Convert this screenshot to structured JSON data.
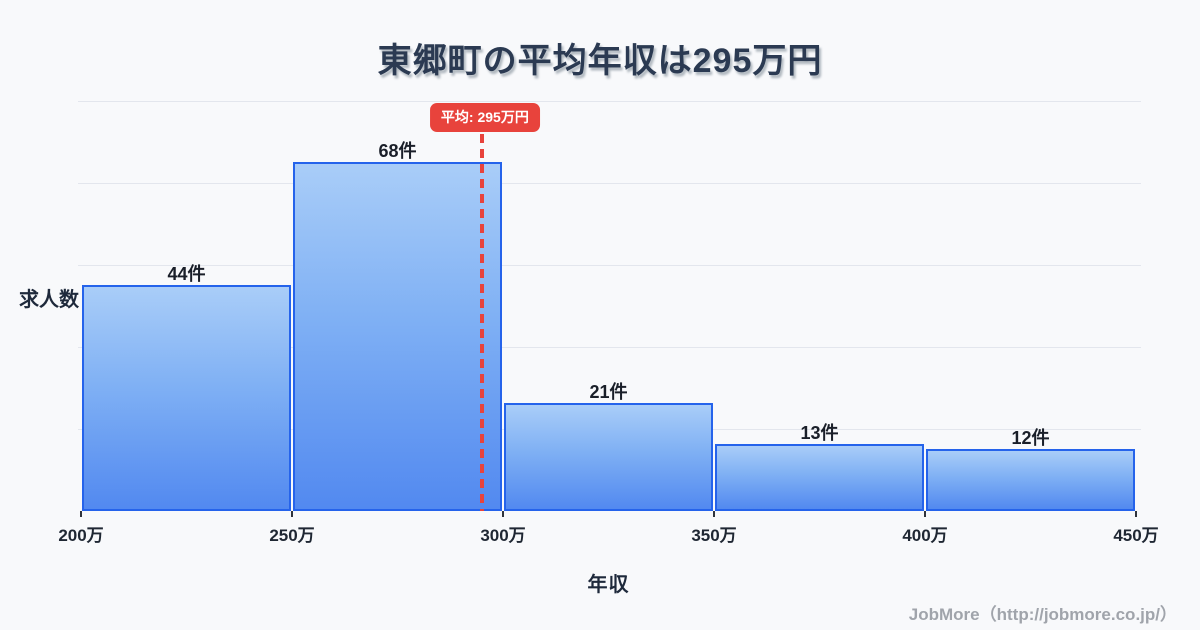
{
  "page": {
    "background_color": "#f8f9fb"
  },
  "title": {
    "text": "東郷町の平均年収は295万円",
    "color": "#2b3a52"
  },
  "chart_data": {
    "type": "bar",
    "subtype": "histogram",
    "title": "東郷町の平均年収は295万円",
    "xlabel": "年収",
    "ylabel": "求人数",
    "categories": [
      "200万-250万",
      "250万-300万",
      "300万-350万",
      "350万-400万",
      "400万-450万"
    ],
    "values": [
      44,
      68,
      21,
      13,
      12
    ],
    "value_labels": [
      "44件",
      "68件",
      "21件",
      "13件",
      "12件"
    ],
    "x_tick_labels": [
      "200万",
      "250万",
      "300万",
      "350万",
      "400万",
      "450万"
    ],
    "x_range": [
      200,
      450
    ],
    "grid": true,
    "gridline_count": 5,
    "legend": "none",
    "average": {
      "value": 295,
      "label": "平均: 295万円"
    },
    "colors": {
      "bar_fill_top": "#a9cdf8",
      "bar_fill_bottom": "#5289f0",
      "bar_border": "#2563eb",
      "average_line": "#e8433c",
      "badge_background": "#e8433c",
      "badge_text": "#ffffff",
      "gridline": "#e3e6ed",
      "label_text": "#1a1f29"
    }
  },
  "footer": {
    "text": "JobMore（http://jobmore.co.jp/）"
  }
}
